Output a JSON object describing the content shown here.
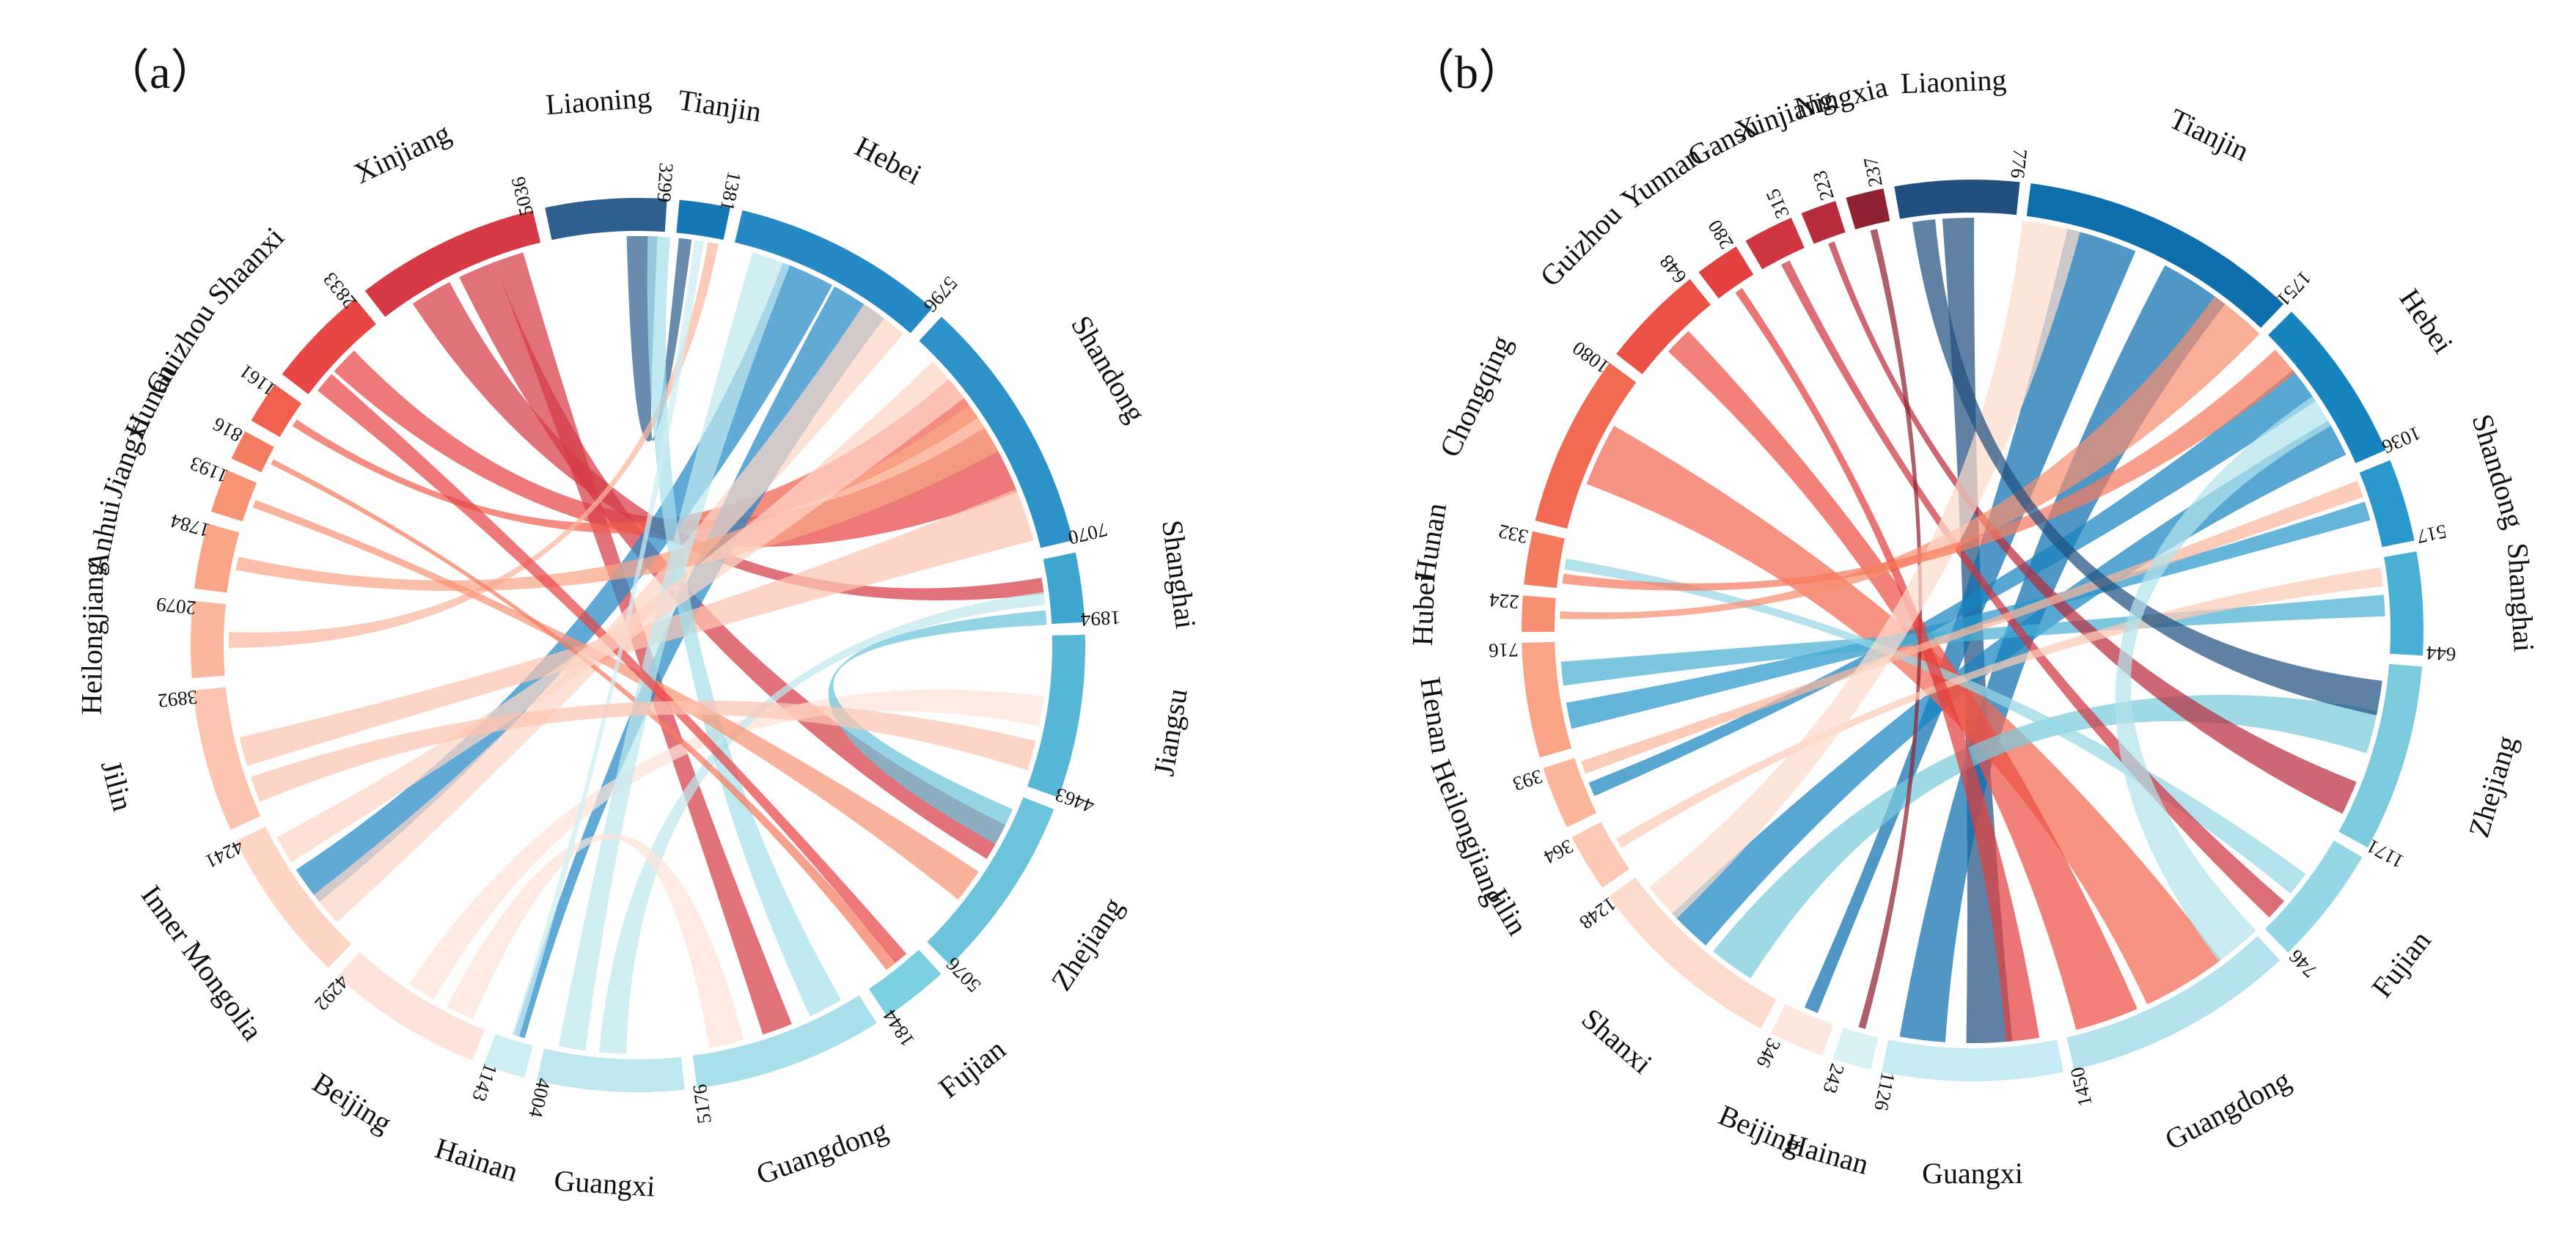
{
  "panels": [
    {
      "id": "a",
      "label": "（a）",
      "segments": [
        {
          "name": "Liaoning",
          "value": "3299",
          "color": "#2f5f8f"
        },
        {
          "name": "Tianjin",
          "value": "1381",
          "color": "#1677b6"
        },
        {
          "name": "Hebei",
          "value": "5796",
          "color": "#2589c6"
        },
        {
          "name": "Shandong",
          "value": "7070",
          "color": "#2c92c8"
        },
        {
          "name": "Shanghai",
          "value": "1894",
          "color": "#3fa7cf"
        },
        {
          "name": "Jiangsu",
          "value": "4463",
          "color": "#58b7d6"
        },
        {
          "name": "Zhejiang",
          "value": "5076",
          "color": "#6cc3dc"
        },
        {
          "name": "Fujian",
          "value": "1844",
          "color": "#7dd0e2"
        },
        {
          "name": "Guangdong",
          "value": "5176",
          "color": "#a8dfea"
        },
        {
          "name": "Guangxi",
          "value": "4004",
          "color": "#bfe7ef"
        },
        {
          "name": "Hainan",
          "value": "1143",
          "color": "#cdeff4"
        },
        {
          "name": "Beijing",
          "value": "4292",
          "color": "#fde3da"
        },
        {
          "name": "Inner Mongolia",
          "value": "4241",
          "color": "#fdd5c5"
        },
        {
          "name": "Jilin",
          "value": "3892",
          "color": "#fcc5b0"
        },
        {
          "name": "Heilongjiang",
          "value": "2079",
          "color": "#fbb69c"
        },
        {
          "name": "Anhui",
          "value": "1784",
          "color": "#f9a688"
        },
        {
          "name": "Jiangxi",
          "value": "1193",
          "color": "#f79474"
        },
        {
          "name": "Hunan",
          "value": "816",
          "color": "#f47c60"
        },
        {
          "name": "Guizhou",
          "value": "1161",
          "color": "#f1604f"
        },
        {
          "name": "Shaanxi",
          "value": "2833",
          "color": "#e84545"
        },
        {
          "name": "Xinjiang",
          "value": "5036",
          "color": "#d63b45"
        }
      ]
    },
    {
      "id": "b",
      "label": "（b）",
      "segments": [
        {
          "name": "Liaoning",
          "value": "776",
          "color": "#21507f"
        },
        {
          "name": "Tianjin",
          "value": "1751",
          "color": "#0d6fae"
        },
        {
          "name": "Hebei",
          "value": "1036",
          "color": "#1784c0"
        },
        {
          "name": "Shandong",
          "value": "517",
          "color": "#2997cb"
        },
        {
          "name": "Shanghai",
          "value": "644",
          "color": "#49b0d4"
        },
        {
          "name": "Zhejiang",
          "value": "1171",
          "color": "#7bcadd"
        },
        {
          "name": "Fujian",
          "value": "746",
          "color": "#95d7e6"
        },
        {
          "name": "Guangdong",
          "value": "1450",
          "color": "#b3e2ec"
        },
        {
          "name": "Guangxi",
          "value": "1126",
          "color": "#c7ebf2"
        },
        {
          "name": "Hainan",
          "value": "243",
          "color": "#d9f2f6"
        },
        {
          "name": "Beijing",
          "value": "346",
          "color": "#fde7de"
        },
        {
          "name": "Shanxi",
          "value": "1248",
          "color": "#fddbcc"
        },
        {
          "name": "Jilin",
          "value": "364",
          "color": "#fccab4"
        },
        {
          "name": "Heilongjiang",
          "value": "393",
          "color": "#fbb79c"
        },
        {
          "name": "Henan",
          "value": "716",
          "color": "#f9a487"
        },
        {
          "name": "Hubei",
          "value": "224",
          "color": "#f78f70"
        },
        {
          "name": "Hunan",
          "value": "332",
          "color": "#f57b5e"
        },
        {
          "name": "Chongqing",
          "value": "1080",
          "color": "#f26a52"
        },
        {
          "name": "Guizhou",
          "value": "648",
          "color": "#ec5145"
        },
        {
          "name": "Yunnan",
          "value": "280",
          "color": "#e3403f"
        },
        {
          "name": "Gansu",
          "value": "315",
          "color": "#cf3640"
        },
        {
          "name": "Xinjiang",
          "value": "223",
          "color": "#b92c3d"
        },
        {
          "name": "Ningxia",
          "value": "237",
          "color": "#8e2231"
        }
      ]
    }
  ]
}
